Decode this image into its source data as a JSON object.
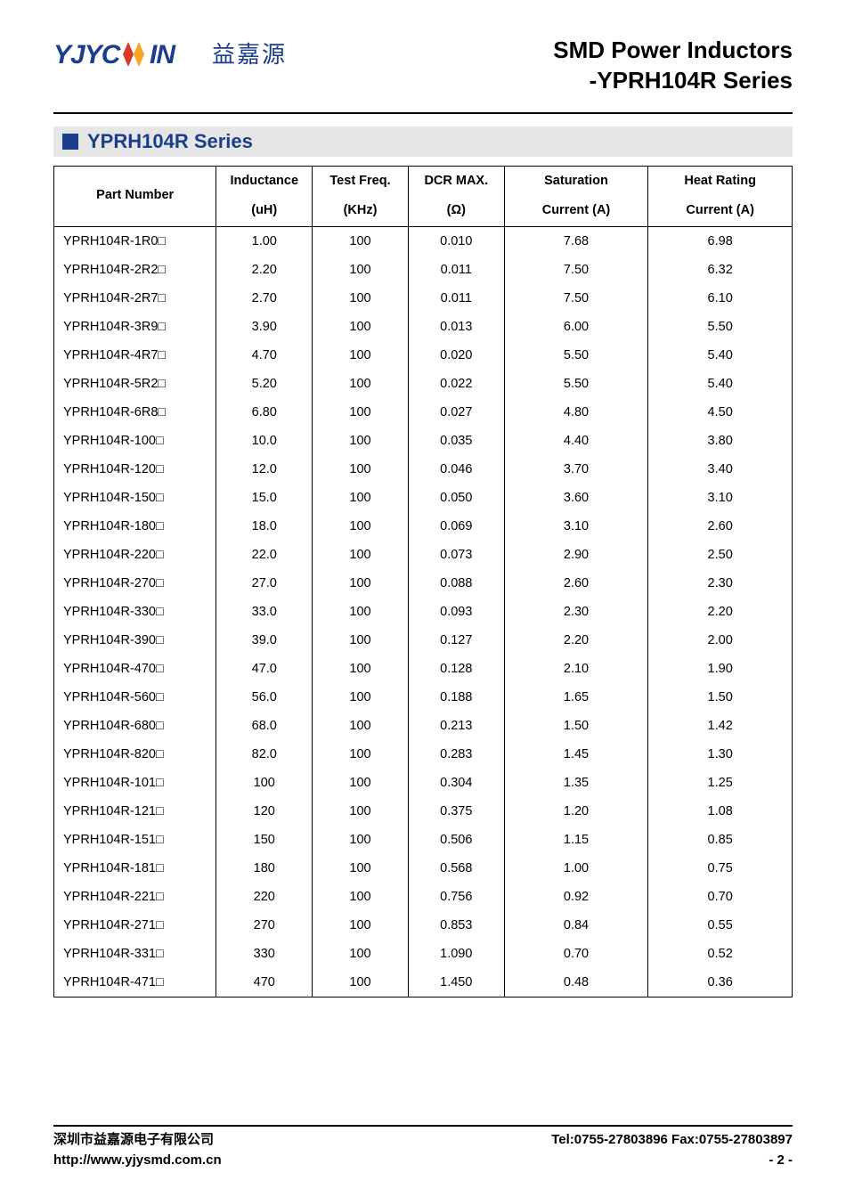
{
  "logo": {
    "text_en": "YJYCOIN",
    "text_cn": "益嘉源",
    "color": "#1b3e8c"
  },
  "doc": {
    "title_line1": "SMD Power Inductors",
    "title_line2": "-YPRH104R Series"
  },
  "section": {
    "title": "YPRH104R Series"
  },
  "table": {
    "columns": [
      {
        "label_top": "Part Number",
        "label_bottom": ""
      },
      {
        "label_top": "Inductance",
        "label_bottom": "(uH)"
      },
      {
        "label_top": "Test Freq.",
        "label_bottom": "(KHz)"
      },
      {
        "label_top": "DCR MAX.",
        "label_bottom": "(Ω)"
      },
      {
        "label_top": "Saturation",
        "label_bottom": "Current (A)"
      },
      {
        "label_top": "Heat Rating",
        "label_bottom": "Current (A)"
      }
    ],
    "rows": [
      [
        "YPRH104R-1R0□",
        "1.00",
        "100",
        "0.010",
        "7.68",
        "6.98"
      ],
      [
        "YPRH104R-2R2□",
        "2.20",
        "100",
        "0.011",
        "7.50",
        "6.32"
      ],
      [
        "YPRH104R-2R7□",
        "2.70",
        "100",
        "0.011",
        "7.50",
        "6.10"
      ],
      [
        "YPRH104R-3R9□",
        "3.90",
        "100",
        "0.013",
        "6.00",
        "5.50"
      ],
      [
        "YPRH104R-4R7□",
        "4.70",
        "100",
        "0.020",
        "5.50",
        "5.40"
      ],
      [
        "YPRH104R-5R2□",
        "5.20",
        "100",
        "0.022",
        "5.50",
        "5.40"
      ],
      [
        "YPRH104R-6R8□",
        "6.80",
        "100",
        "0.027",
        "4.80",
        "4.50"
      ],
      [
        "YPRH104R-100□",
        "10.0",
        "100",
        "0.035",
        "4.40",
        "3.80"
      ],
      [
        "YPRH104R-120□",
        "12.0",
        "100",
        "0.046",
        "3.70",
        "3.40"
      ],
      [
        "YPRH104R-150□",
        "15.0",
        "100",
        "0.050",
        "3.60",
        "3.10"
      ],
      [
        "YPRH104R-180□",
        "18.0",
        "100",
        "0.069",
        "3.10",
        "2.60"
      ],
      [
        "YPRH104R-220□",
        "22.0",
        "100",
        "0.073",
        "2.90",
        "2.50"
      ],
      [
        "YPRH104R-270□",
        "27.0",
        "100",
        "0.088",
        "2.60",
        "2.30"
      ],
      [
        "YPRH104R-330□",
        "33.0",
        "100",
        "0.093",
        "2.30",
        "2.20"
      ],
      [
        "YPRH104R-390□",
        "39.0",
        "100",
        "0.127",
        "2.20",
        "2.00"
      ],
      [
        "YPRH104R-470□",
        "47.0",
        "100",
        "0.128",
        "2.10",
        "1.90"
      ],
      [
        "YPRH104R-560□",
        "56.0",
        "100",
        "0.188",
        "1.65",
        "1.50"
      ],
      [
        "YPRH104R-680□",
        "68.0",
        "100",
        "0.213",
        "1.50",
        "1.42"
      ],
      [
        "YPRH104R-820□",
        "82.0",
        "100",
        "0.283",
        "1.45",
        "1.30"
      ],
      [
        "YPRH104R-101□",
        "100",
        "100",
        "0.304",
        "1.35",
        "1.25"
      ],
      [
        "YPRH104R-121□",
        "120",
        "100",
        "0.375",
        "1.20",
        "1.08"
      ],
      [
        "YPRH104R-151□",
        "150",
        "100",
        "0.506",
        "1.15",
        "0.85"
      ],
      [
        "YPRH104R-181□",
        "180",
        "100",
        "0.568",
        "1.00",
        "0.75"
      ],
      [
        "YPRH104R-221□",
        "220",
        "100",
        "0.756",
        "0.92",
        "0.70"
      ],
      [
        "YPRH104R-271□",
        "270",
        "100",
        "0.853",
        "0.84",
        "0.55"
      ],
      [
        "YPRH104R-331□",
        "330",
        "100",
        "1.090",
        "0.70",
        "0.52"
      ],
      [
        "YPRH104R-471□",
        "470",
        "100",
        "1.450",
        "0.48",
        "0.36"
      ]
    ]
  },
  "footer": {
    "company_cn": "深圳市益嘉源电子有限公司",
    "tel_fax": "Tel:0755-27803896   Fax:0755-27803897",
    "url": "http://www.yjysmd.com.cn",
    "page": "- 2 -"
  },
  "style": {
    "accent_color": "#1b3e8c",
    "section_bg": "#e6e6e6",
    "text_color": "#000000",
    "border_color": "#000000",
    "body_font_size": 14.5,
    "title_font_size": 26,
    "section_title_font_size": 22,
    "footer_font_size": 15
  }
}
